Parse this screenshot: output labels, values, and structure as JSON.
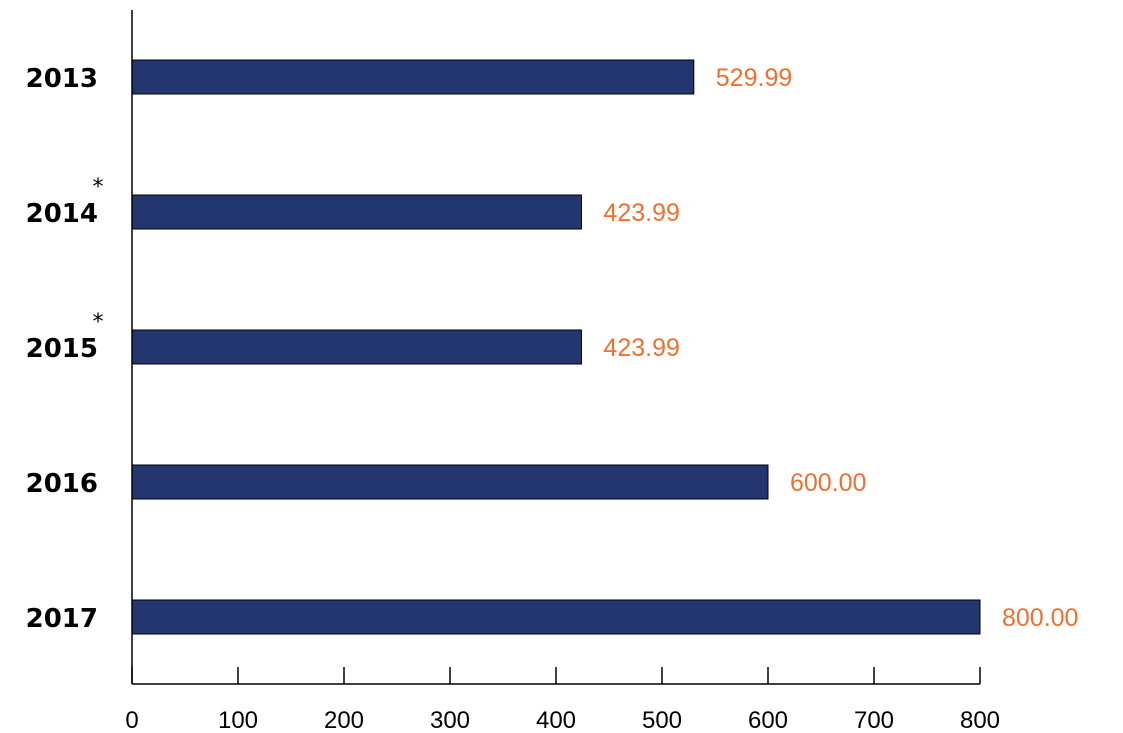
{
  "chart_data": {
    "type": "bar",
    "orientation": "horizontal",
    "title": "",
    "xlabel": "",
    "ylabel": "",
    "categories": [
      "2013",
      "2014",
      "2015",
      "2016",
      "2017"
    ],
    "category_marks": [
      "",
      "*",
      "*",
      "",
      ""
    ],
    "values": [
      529.99,
      423.99,
      423.99,
      600.0,
      800.0
    ],
    "value_labels": [
      "529.99",
      "423.99",
      "423.99",
      "600.00",
      "800.00"
    ],
    "xlim": [
      0,
      800
    ],
    "xticks": [
      0,
      100,
      200,
      300,
      400,
      500,
      600,
      700,
      800
    ],
    "xtick_labels": [
      "0",
      "100",
      "200",
      "300",
      "400",
      "500",
      "600",
      "700",
      "800"
    ],
    "grid": false,
    "colors": {
      "bar": "#233670",
      "value_label": "#f07030",
      "axis": "#000000"
    }
  }
}
